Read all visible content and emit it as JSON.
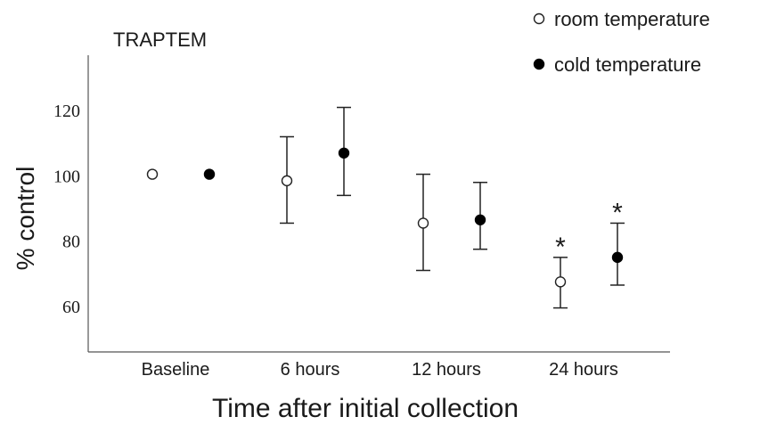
{
  "chart_data": {
    "type": "scatter",
    "title": "TRAPTEM",
    "xlabel": "Time after initial collection",
    "ylabel": "% control",
    "categories": [
      "Baseline",
      "6 hours",
      "12 hours",
      "24 hours"
    ],
    "yticks": [
      "60",
      "80",
      "100",
      "120"
    ],
    "ylim": [
      46,
      137
    ],
    "grid": false,
    "legend": "top-right",
    "series": [
      {
        "name": "room temperature",
        "marker": "open-circle",
        "values": [
          100.5,
          98.5,
          85.5,
          67.5
        ],
        "error_low": [
          100.5,
          85.5,
          71,
          59.5
        ],
        "error_high": [
          100.5,
          112,
          100.5,
          75
        ],
        "significant": [
          false,
          false,
          false,
          true
        ]
      },
      {
        "name": "cold temperature",
        "marker": "filled-circle",
        "values": [
          100.5,
          107,
          86.5,
          75
        ],
        "error_low": [
          100.5,
          94,
          77.5,
          66.5
        ],
        "error_high": [
          100.5,
          121,
          98,
          85.5
        ],
        "significant": [
          false,
          false,
          false,
          true
        ]
      }
    ],
    "annotations": {
      "significance_marker": "*"
    },
    "colors": {
      "axis": "#555555",
      "marker_stroke": "#222222",
      "filled": "#000000",
      "open": "#ffffff",
      "text": "#1a1a1a"
    }
  }
}
